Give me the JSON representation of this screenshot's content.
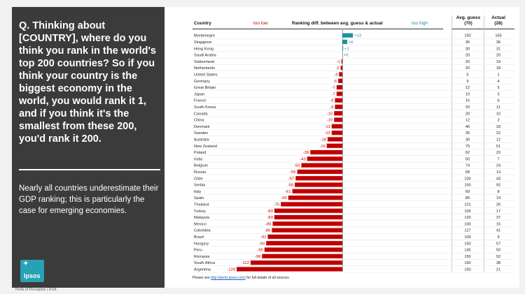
{
  "left": {
    "question": "Q. Thinking about [COUNTRY], where do you think you rank in the world's top 200 countries? So if you think your country is the biggest economy in the world, you would rank it 1, and if you think it's the smallest from these 200, you'd rank it 200.",
    "finding": "Nearly all countries underestimate their GDP ranking; this is particularly the case for emerging economies.",
    "logo_text": "Ipsos"
  },
  "footer": "Perils of Perception | 2018",
  "table": {
    "country_header": "Country",
    "too_low": "too low",
    "diff_header": "Ranking diff. between avg. guess & actual",
    "too_high": "too high",
    "guess_header": "Avg. guess",
    "guess_sub": "(70)",
    "actual_header": "Actual",
    "actual_sub": "(28)"
  },
  "source": {
    "prefix": "Please see ",
    "link": "http://perils.ipsos.com/",
    "suffix": " for full details of all sources."
  },
  "colors": {
    "negative": "#c00000",
    "positive": "#1f8d9c"
  },
  "chart_data": {
    "type": "bar",
    "orientation": "horizontal",
    "categories": [
      "Montenegro",
      "Singapore",
      "Hong Kong",
      "Saudi Arabia",
      "Switzerland",
      "Netherlands",
      "United States",
      "Germany",
      "Great Britain",
      "Japan",
      "France",
      "South Korea",
      "Canada",
      "China",
      "Denmark",
      "Sweden",
      "Australia",
      "New Zealand",
      "Poland",
      "India",
      "Belgium",
      "Russia",
      "Chile",
      "Serbia",
      "Italy",
      "Spain",
      "Thailand",
      "Turkey",
      "Malaysia",
      "Mexico",
      "Colombia",
      "Brazil",
      "Hungary",
      "Peru",
      "Romania",
      "South Africa",
      "Argentina"
    ],
    "values": [
      13,
      6,
      1,
      0,
      -1,
      -2,
      -4,
      -5,
      -7,
      -7,
      -9,
      -9,
      -10,
      -10,
      -13,
      -13,
      -18,
      -19,
      -39,
      -43,
      -50,
      -55,
      -57,
      -58,
      -61,
      -66,
      -75,
      -83,
      -83,
      -85,
      -86,
      -91,
      -93,
      -95,
      -98,
      -112,
      -129
    ],
    "labels": [
      "+13",
      "+6",
      "+1",
      "+0",
      "-1",
      "-2",
      "-4",
      "-5",
      "-7",
      "-7",
      "-9",
      "-9",
      "-10",
      "-10",
      "-13",
      "-13",
      "-18",
      "-19",
      "-39",
      "-43",
      "-50",
      "-55",
      "-57",
      "-58",
      "-61",
      "-66",
      "-75",
      "-83",
      "-83",
      "-85",
      "-86",
      "-91",
      "-93",
      "-95",
      "-98",
      "-112",
      "-129"
    ],
    "avg_guess": [
      150,
      30,
      30,
      20,
      20,
      20,
      5,
      9,
      12,
      10,
      15,
      20,
      20,
      12,
      46,
      35,
      30,
      70,
      62,
      50,
      74,
      68,
      100,
      150,
      69,
      80,
      101,
      100,
      120,
      100,
      127,
      100,
      150,
      145,
      150,
      150,
      150
    ],
    "actual": [
      163,
      36,
      31,
      20,
      19,
      18,
      1,
      4,
      5,
      3,
      6,
      11,
      10,
      2,
      33,
      22,
      12,
      51,
      23,
      7,
      24,
      13,
      43,
      92,
      8,
      14,
      26,
      17,
      37,
      15,
      41,
      9,
      57,
      50,
      52,
      38,
      21
    ],
    "xlim": [
      -129,
      13
    ],
    "grid": false
  }
}
